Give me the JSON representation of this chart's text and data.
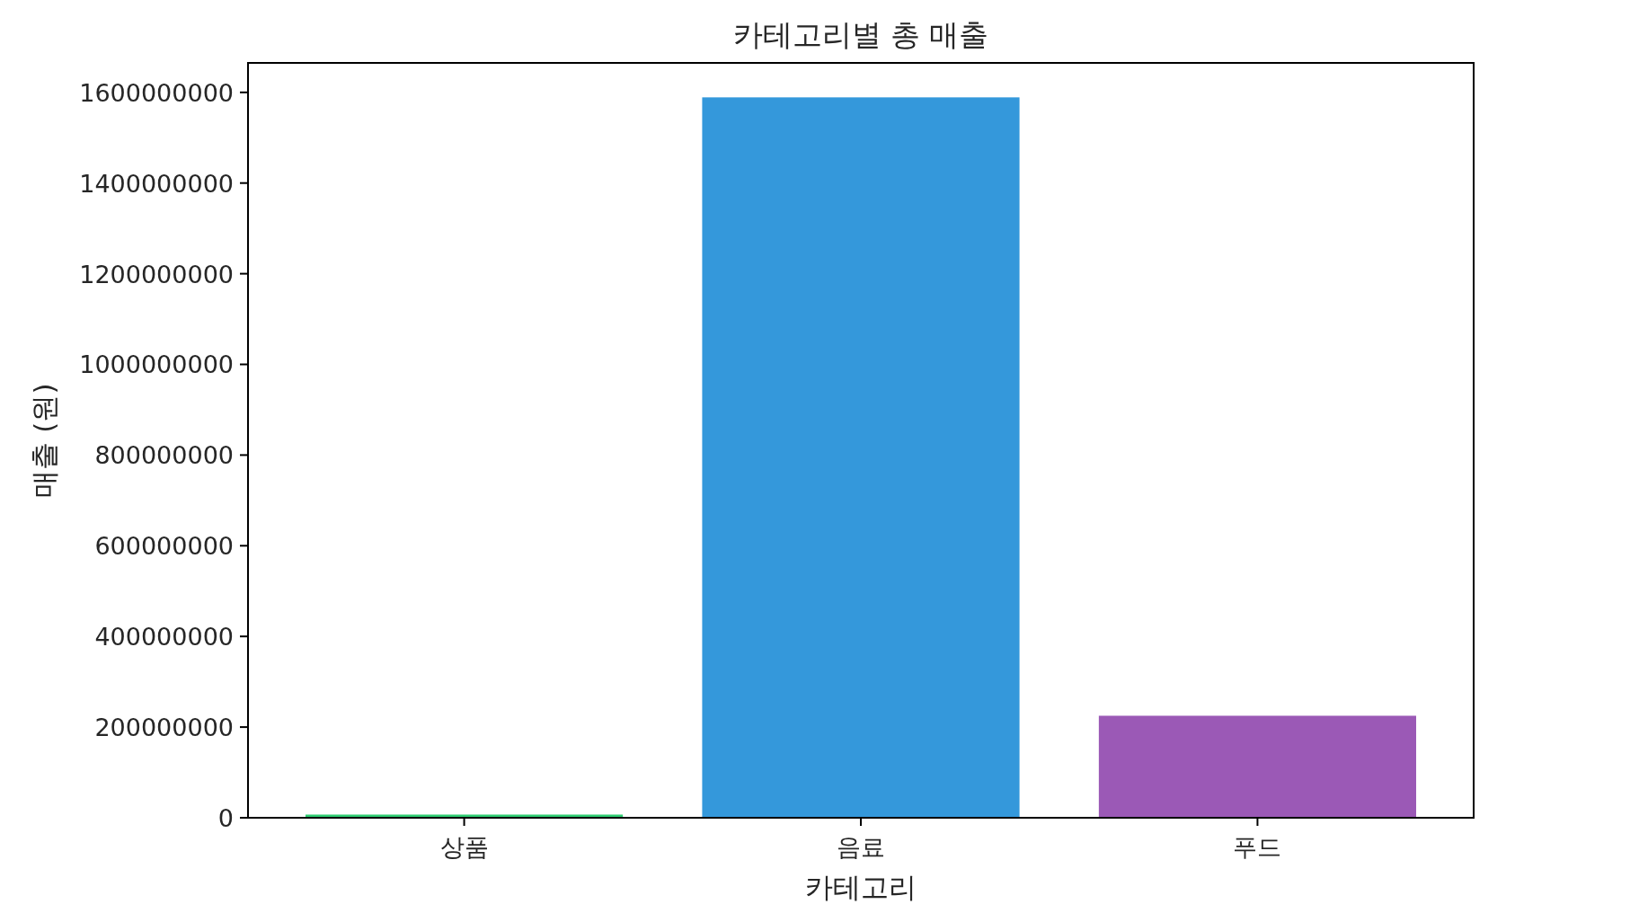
{
  "chart_data": {
    "type": "bar",
    "title": "카테고리별 총 매출",
    "xlabel": "카테고리",
    "ylabel": "매출 (원)",
    "categories": [
      "상품",
      "음료",
      "푸드"
    ],
    "values": [
      7000000,
      1589000000,
      225000000
    ],
    "colors": [
      "#2ecc71",
      "#3498db",
      "#9b59b6"
    ],
    "ylim": [
      0,
      1665000000
    ],
    "yticks": [
      0,
      200000000,
      400000000,
      600000000,
      800000000,
      1000000000,
      1200000000,
      1400000000,
      1600000000
    ],
    "grid": false
  }
}
